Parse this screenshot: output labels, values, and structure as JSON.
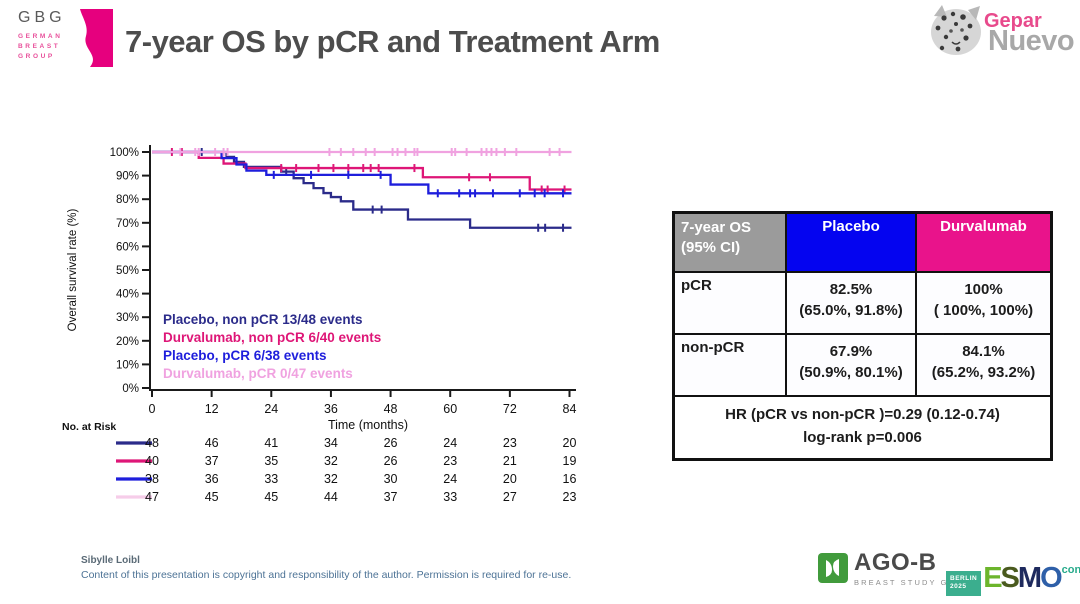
{
  "header": {
    "gbg_logo": {
      "acronym": "GBG",
      "lines": [
        "GERMAN",
        "BREAST",
        "GROUP"
      ]
    },
    "title": "7-year OS by pCR and Treatment Arm",
    "gepar_logo": {
      "part1": "Gepar",
      "part2": "Nuevo"
    }
  },
  "chart_data": {
    "type": "line",
    "subtype": "kaplan-meier-step",
    "title": "",
    "xlabel": "Time (months)",
    "ylabel": "Overall survival rate (%)",
    "xlim": [
      0,
      84
    ],
    "ylim": [
      0,
      100
    ],
    "x_ticks": [
      0,
      12,
      24,
      36,
      48,
      60,
      72,
      84
    ],
    "y_tick_step": 10,
    "y_tick_suffix": "%",
    "grid": false,
    "legend_position": "inside-lower-left",
    "no_at_risk_label": "No. at Risk",
    "series": [
      {
        "name": "Placebo, non pCR 13/48 events",
        "color": "#2b2b8a",
        "steps": [
          [
            0,
            100
          ],
          [
            15,
            97.9
          ],
          [
            16.5,
            95.8
          ],
          [
            18.5,
            93.7
          ],
          [
            26,
            91.7
          ],
          [
            28.5,
            88.9
          ],
          [
            30.5,
            86.8
          ],
          [
            32.5,
            84.7
          ],
          [
            34.5,
            82.6
          ],
          [
            36,
            80.9
          ],
          [
            38,
            79.1
          ],
          [
            40.5,
            75.6
          ],
          [
            51.5,
            71.4
          ],
          [
            64,
            67.9
          ]
        ],
        "censors": [
          [
            10,
            100
          ],
          [
            27,
            91.7
          ],
          [
            44.4,
            75.6
          ],
          [
            46.2,
            75.6
          ],
          [
            77.7,
            67.9
          ],
          [
            79.1,
            67.9
          ],
          [
            82.7,
            67.9
          ]
        ],
        "at_risk": [
          48,
          46,
          41,
          34,
          26,
          24,
          23,
          20
        ]
      },
      {
        "name": "Durvalumab, non pCR 6/40 events",
        "color": "#de1677",
        "steps": [
          [
            0,
            100
          ],
          [
            9.4,
            97.5
          ],
          [
            14.4,
            95.1
          ],
          [
            18.8,
            93.2
          ],
          [
            54.5,
            89.3
          ],
          [
            76,
            84.1
          ]
        ],
        "censors": [
          [
            4,
            100
          ],
          [
            6,
            100
          ],
          [
            26,
            93.2
          ],
          [
            29,
            93.2
          ],
          [
            33.5,
            93.2
          ],
          [
            36.5,
            93.2
          ],
          [
            39.5,
            93.2
          ],
          [
            42.5,
            93.2
          ],
          [
            44,
            93.2
          ],
          [
            45.6,
            93.2
          ],
          [
            52.8,
            93.2
          ],
          [
            63.8,
            89.3
          ],
          [
            68,
            89.3
          ],
          [
            78.4,
            84.1
          ],
          [
            79.6,
            84.1
          ],
          [
            83,
            84.1
          ]
        ],
        "at_risk": [
          40,
          37,
          35,
          32,
          26,
          23,
          21,
          19
        ]
      },
      {
        "name": "Placebo, pCR 6/38 events",
        "color": "#1e1edc",
        "steps": [
          [
            0,
            100
          ],
          [
            14,
            97.4
          ],
          [
            17,
            94.7
          ],
          [
            19,
            92.1
          ],
          [
            23,
            90.3
          ],
          [
            48,
            86.2
          ],
          [
            55.6,
            82.5
          ]
        ],
        "censors": [
          [
            24.5,
            90.3
          ],
          [
            32,
            90.3
          ],
          [
            39.5,
            90.3
          ],
          [
            46,
            90.3
          ],
          [
            57.5,
            82.5
          ],
          [
            61.8,
            82.5
          ],
          [
            64,
            82.5
          ],
          [
            65,
            82.5
          ],
          [
            68.6,
            82.5
          ],
          [
            74,
            82.5
          ],
          [
            77,
            82.5
          ],
          [
            79,
            82.5
          ],
          [
            82.7,
            82.5
          ]
        ],
        "at_risk": [
          38,
          36,
          33,
          32,
          30,
          24,
          20,
          16
        ]
      },
      {
        "name": "Durvalumab, pCR 0/47 events",
        "color": "#f0a2e0",
        "swatch_color": "#f6cde9",
        "steps": [
          [
            0,
            100
          ]
        ],
        "censors": [
          [
            5.7,
            100
          ],
          [
            8.7,
            100
          ],
          [
            9.4,
            100
          ],
          [
            12.7,
            100
          ],
          [
            14.4,
            100
          ],
          [
            15.2,
            100
          ],
          [
            35.7,
            100
          ],
          [
            38,
            100
          ],
          [
            40.5,
            100
          ],
          [
            43,
            100
          ],
          [
            44.8,
            100
          ],
          [
            48.4,
            100
          ],
          [
            49.4,
            100
          ],
          [
            51,
            100
          ],
          [
            52.8,
            100
          ],
          [
            53.4,
            100
          ],
          [
            60.3,
            100
          ],
          [
            61,
            100
          ],
          [
            63.3,
            100
          ],
          [
            66.3,
            100
          ],
          [
            67.3,
            100
          ],
          [
            68.3,
            100
          ],
          [
            69.3,
            100
          ],
          [
            71,
            100
          ],
          [
            73.3,
            100
          ],
          [
            80,
            100
          ],
          [
            82,
            100
          ]
        ],
        "at_risk": [
          47,
          45,
          45,
          44,
          37,
          33,
          27,
          23
        ]
      }
    ]
  },
  "stats_table": {
    "header": {
      "corner_line1": "7-year OS",
      "corner_line2": "(95% CI)",
      "placebo": "Placebo",
      "durvalumab": "Durvalumab"
    },
    "rows": [
      {
        "label": "pCR",
        "placebo_value": "82.5%",
        "placebo_ci": "(65.0%, 91.8%)",
        "durvalumab_value": "100%",
        "durvalumab_ci": "( 100%, 100%)"
      },
      {
        "label": "non-pCR",
        "placebo_value": "67.9%",
        "placebo_ci": "(50.9%, 80.1%)",
        "durvalumab_value": "84.1%",
        "durvalumab_ci": "(65.2%, 93.2%)"
      }
    ],
    "footer_line1": "HR (pCR vs non-pCR )=0.29 (0.12-0.74)",
    "footer_line2": "log-rank p=0.006"
  },
  "footer": {
    "author": "Sibylle Loibl",
    "copyright": "Content of this presentation is copyright and responsibility of the author. Permission is required for re-use.",
    "agob_logo": {
      "name": "AGO-B",
      "subtitle": "BREAST STUDY GROUP"
    },
    "esmo_logo": {
      "city": "BERLIN",
      "year": "2025",
      "letters": "ESMO",
      "suffix": "congress"
    }
  },
  "colors": {
    "title_gray": "#4d4d4d",
    "brand_magenta": "#e6007e",
    "table_corner_bg": "#9b9b9b",
    "table_placebo_bg": "#0404f0",
    "table_durvalumab_bg": "#e9138b",
    "curve_placebo_nonpcr": "#2b2b8a",
    "curve_durvalumab_nonpcr": "#de1677",
    "curve_placebo_pcr": "#1e1edc",
    "curve_durvalumab_pcr": "#f0a2e0",
    "agob_green": "#419b3c",
    "esmo_teal": "#3bae8e"
  }
}
